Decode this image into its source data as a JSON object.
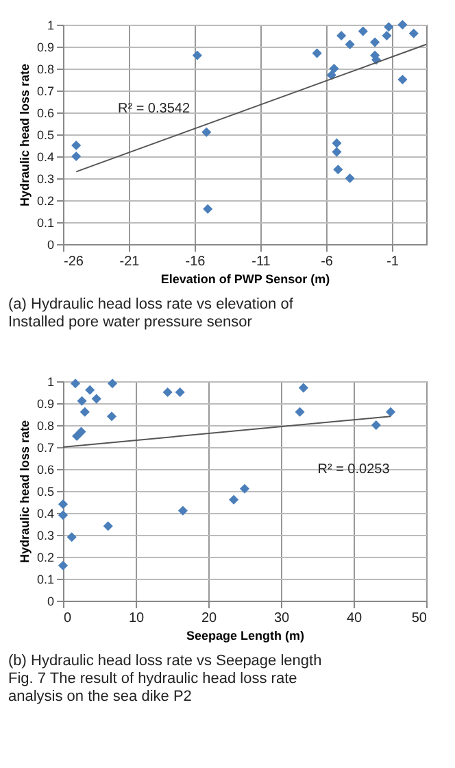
{
  "chart_data": [
    {
      "type": "scatter",
      "xlabel": "Elevation of PWP Sensor (m)",
      "ylabel": "Hydraulic head loss rate",
      "xlim": [
        -26,
        1.6
      ],
      "xticks": [
        -26,
        -21,
        -16,
        -11,
        -6,
        -1
      ],
      "ylim": [
        0,
        1
      ],
      "yticks": [
        0,
        0.1,
        0.2,
        0.3,
        0.4,
        0.5,
        0.6,
        0.7,
        0.8,
        0.9,
        1
      ],
      "grid": true,
      "series": [
        {
          "marker": "diamond",
          "color": "#4a7ebb",
          "x": [
            -25,
            -25,
            -15.8,
            -15.1,
            -15,
            -6.7,
            -5.6,
            -5.4,
            -5.2,
            -5.2,
            -5.1,
            -4.85,
            -4.2,
            -4.2,
            -3.2,
            -2.3,
            -2.3,
            -2.2,
            -1.4,
            -1.25,
            -0.2,
            -0.2,
            0.65
          ],
          "values": [
            0.45,
            0.4,
            0.86,
            0.51,
            0.16,
            0.87,
            0.77,
            0.8,
            0.46,
            0.42,
            0.34,
            0.95,
            0.91,
            0.3,
            0.97,
            0.92,
            0.86,
            0.84,
            0.95,
            0.99,
            1,
            0.75,
            0.96
          ]
        },
        {
          "type": "line",
          "color": "#555555",
          "x": [
            -25,
            1.6
          ],
          "values": [
            0.33,
            0.91
          ]
        }
      ],
      "annotations": [
        "R² = 0.3542",
        "(a) Hydraulic head loss rate vs elevation of Installed pore water pressure sensor"
      ]
    },
    {
      "type": "scatter",
      "xlabel": "Seepage Length (m)",
      "ylabel": "Hydraulic head loss rate",
      "xlim": [
        0,
        50
      ],
      "xticks": [
        0,
        10,
        20,
        30,
        40,
        50
      ],
      "ylim": [
        0,
        1
      ],
      "yticks": [
        0,
        0.1,
        0.2,
        0.3,
        0.4,
        0.5,
        0.6,
        0.7,
        0.8,
        0.9,
        1
      ],
      "grid": true,
      "series": [
        {
          "marker": "diamond",
          "color": "#4a7ebb",
          "x": [
            1.7,
            6.8,
            3.7,
            2.6,
            4.6,
            3,
            6.7,
            1.9,
            2.5,
            0,
            0,
            1.2,
            0,
            6.2,
            14.4,
            16.1,
            16.5,
            23.5,
            25,
            32.6,
            33.1,
            43.1,
            45.1
          ],
          "values": [
            0.99,
            0.99,
            0.96,
            0.91,
            0.92,
            0.86,
            0.84,
            0.75,
            0.77,
            0.44,
            0.39,
            0.29,
            0.16,
            0.34,
            0.95,
            0.95,
            0.41,
            0.46,
            0.51,
            0.86,
            0.97,
            0.8,
            0.86
          ]
        },
        {
          "type": "line",
          "color": "#555555",
          "x": [
            0,
            45.1
          ],
          "values": [
            0.7,
            0.84
          ]
        }
      ],
      "annotations": [
        "R² = 0.0253",
        "(b) Hydraulic head loss rate vs Seepage length",
        "Fig. 7 The result of hydraulic head loss rate analysis on the sea dike P2"
      ]
    }
  ]
}
